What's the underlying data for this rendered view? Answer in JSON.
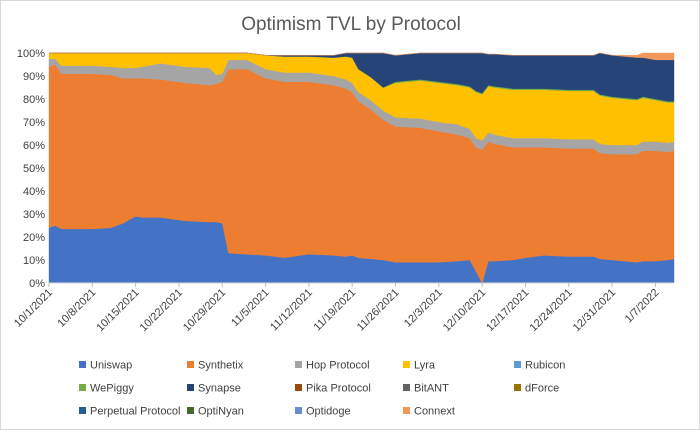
{
  "chart_data": {
    "type": "area",
    "stacked": "percent",
    "title": "Optimism TVL by Protocol",
    "xlabel": "",
    "ylabel": "",
    "ylim": [
      0,
      100
    ],
    "y_ticks": [
      "0%",
      "10%",
      "20%",
      "30%",
      "40%",
      "50%",
      "60%",
      "70%",
      "80%",
      "90%",
      "100%"
    ],
    "x_ticks": [
      {
        "day": 0,
        "label": "10/1/2021"
      },
      {
        "day": 7,
        "label": "10/8/2021"
      },
      {
        "day": 14,
        "label": "10/15/2021"
      },
      {
        "day": 21,
        "label": "10/22/2021"
      },
      {
        "day": 28,
        "label": "10/29/2021"
      },
      {
        "day": 35,
        "label": "11/5/2021"
      },
      {
        "day": 42,
        "label": "11/12/2021"
      },
      {
        "day": 49,
        "label": "11/19/2021"
      },
      {
        "day": 56,
        "label": "11/26/2021"
      },
      {
        "day": 63,
        "label": "12/3/2021"
      },
      {
        "day": 70,
        "label": "12/10/2021"
      },
      {
        "day": 77,
        "label": "12/17/2021"
      },
      {
        "day": 84,
        "label": "12/24/2021"
      },
      {
        "day": 91,
        "label": "12/31/2021"
      },
      {
        "day": 98,
        "label": "1/7/2022"
      }
    ],
    "x_day_range": [
      0,
      101
    ],
    "keyframes": [
      0,
      1,
      2,
      7,
      10,
      12,
      14,
      15,
      18,
      22,
      26,
      27,
      28,
      29,
      32,
      35,
      38,
      42,
      46,
      48,
      49,
      50,
      52,
      54,
      56,
      60,
      63,
      66,
      68,
      69,
      70,
      71,
      72,
      75,
      77,
      80,
      84,
      88,
      89,
      91,
      95,
      96,
      98,
      100,
      101
    ],
    "series": [
      {
        "name": "Uniswap",
        "color": "#4472C4",
        "values": [
          24,
          25,
          23.5,
          23.5,
          24,
          26,
          29,
          28.5,
          28.5,
          27,
          26.5,
          26.5,
          26,
          13,
          12.5,
          12,
          11,
          12.5,
          12,
          11.5,
          12,
          11,
          10.5,
          10,
          9,
          9,
          9,
          9.5,
          10,
          5,
          0,
          9.5,
          9.5,
          10,
          11,
          12,
          11.5,
          11.5,
          10.5,
          10,
          9,
          9.5,
          9.5,
          10,
          10.5
        ]
      },
      {
        "name": "Synthetix",
        "color": "#ED7D31",
        "values": [
          70,
          70,
          67.5,
          67.5,
          66.5,
          63,
          60,
          60.5,
          60,
          60,
          59.5,
          60,
          61.5,
          80,
          80.5,
          77,
          76.5,
          75,
          74,
          73,
          71,
          68,
          65,
          61,
          59,
          58.5,
          57,
          55,
          53,
          54,
          58,
          52,
          51,
          49,
          48,
          47,
          47,
          47,
          46,
          46,
          47,
          48,
          48,
          47,
          47
        ]
      },
      {
        "name": "Hop Protocol",
        "color": "#A5A5A5",
        "values": [
          3.5,
          2.5,
          3.5,
          3.5,
          3.5,
          4.5,
          4.5,
          5,
          7,
          7,
          7.5,
          4,
          3.5,
          4,
          4,
          4,
          4,
          4,
          4,
          4,
          4,
          4,
          4,
          4,
          4,
          4,
          4,
          4.5,
          4,
          4,
          4,
          4,
          4,
          4,
          4,
          4,
          4,
          4,
          4,
          4,
          4,
          4,
          4,
          4,
          4
        ]
      },
      {
        "name": "Lyra",
        "color": "#FFC000",
        "values": [
          2.5,
          2.5,
          5.5,
          5.5,
          6,
          6.5,
          6.5,
          6,
          4.5,
          6,
          6.5,
          9.5,
          9,
          3,
          3,
          6,
          7,
          7,
          8,
          10,
          11,
          10,
          10,
          10,
          15,
          16.5,
          17,
          17,
          18,
          20,
          20,
          20,
          20.5,
          21,
          21,
          21,
          21,
          21,
          21,
          20.5,
          19.5,
          19,
          18,
          17.5,
          17
        ]
      },
      {
        "name": "Rubicon",
        "color": "#5B9BD5",
        "values": [
          0,
          0,
          0,
          0,
          0,
          0,
          0,
          0,
          0,
          0,
          0,
          0,
          0,
          0,
          0,
          0,
          0,
          0,
          0,
          0,
          0,
          0,
          0,
          0,
          0,
          0,
          0,
          0,
          0,
          0,
          0,
          0,
          0,
          0,
          0,
          0,
          0,
          0,
          0,
          0,
          0,
          0,
          0,
          0,
          0
        ]
      },
      {
        "name": "WePiggy",
        "color": "#70AD47",
        "values": [
          0,
          0,
          0,
          0,
          0,
          0,
          0,
          0,
          0,
          0,
          0,
          0,
          0,
          0,
          0,
          0,
          0,
          0,
          0,
          0,
          0,
          0,
          0,
          0,
          0.5,
          0.5,
          0.5,
          0.5,
          0.5,
          0.5,
          0.5,
          0.5,
          0.5,
          0.5,
          0.5,
          0.5,
          0.5,
          0.5,
          0.5,
          0.5,
          0.5,
          0.5,
          0.5,
          0.5,
          0.5
        ]
      },
      {
        "name": "Synapse",
        "color": "#264478",
        "values": [
          0,
          0,
          0,
          0,
          0,
          0,
          0,
          0,
          0,
          0,
          0,
          0,
          0,
          0,
          0,
          0,
          0.5,
          0.5,
          1,
          1.5,
          2,
          7,
          10.5,
          15,
          11.5,
          11.5,
          12.5,
          13.5,
          14.5,
          16.5,
          17.5,
          13.5,
          14,
          14.5,
          14.5,
          14.5,
          15,
          15,
          18,
          18,
          18,
          17,
          17,
          18,
          18
        ]
      },
      {
        "name": "Pika Protocol",
        "color": "#9E480E",
        "values": [
          0,
          0,
          0,
          0,
          0,
          0,
          0,
          0,
          0,
          0,
          0,
          0,
          0,
          0,
          0,
          0,
          0,
          0,
          0,
          0,
          0,
          0,
          0,
          0,
          0,
          0,
          0,
          0,
          0,
          0,
          0,
          0,
          0,
          0,
          0,
          0,
          0,
          0,
          0,
          0,
          0,
          0,
          0,
          0,
          0
        ]
      },
      {
        "name": "BitANT",
        "color": "#636363",
        "values": [
          0,
          0,
          0,
          0,
          0,
          0,
          0,
          0,
          0,
          0,
          0,
          0,
          0,
          0,
          0,
          0,
          0,
          0,
          0,
          0,
          0,
          0,
          0,
          0,
          0,
          0,
          0,
          0,
          0,
          0,
          0,
          0,
          0,
          0,
          0,
          0,
          0,
          0,
          0,
          0,
          0,
          0,
          0,
          0,
          0
        ]
      },
      {
        "name": "dForce",
        "color": "#997300",
        "values": [
          0,
          0,
          0,
          0,
          0,
          0,
          0,
          0,
          0,
          0,
          0,
          0,
          0,
          0,
          0,
          0,
          0,
          0,
          0,
          0,
          0,
          0,
          0,
          0,
          0,
          0,
          0,
          0,
          0,
          0,
          0,
          0,
          0,
          0,
          0,
          0,
          0,
          0,
          0,
          0,
          0,
          0,
          0,
          0,
          0
        ]
      },
      {
        "name": "Perpetual Protocol",
        "color": "#255E91",
        "values": [
          0,
          0,
          0,
          0,
          0,
          0,
          0,
          0,
          0,
          0,
          0,
          0,
          0,
          0,
          0,
          0,
          0,
          0,
          0,
          0,
          0,
          0,
          0,
          0,
          0,
          0,
          0,
          0,
          0,
          0,
          0,
          0,
          0,
          0,
          0,
          0,
          0,
          0,
          0,
          0,
          0,
          0,
          0,
          0,
          0
        ]
      },
      {
        "name": "OptiNyan",
        "color": "#43682B",
        "values": [
          0,
          0,
          0,
          0,
          0,
          0,
          0,
          0,
          0,
          0,
          0,
          0,
          0,
          0,
          0,
          0,
          0,
          0,
          0,
          0,
          0,
          0,
          0,
          0,
          0,
          0,
          0,
          0,
          0,
          0,
          0,
          0,
          0,
          0,
          0,
          0,
          0,
          0,
          0,
          0,
          0,
          0,
          0,
          0,
          0
        ]
      },
      {
        "name": "Optidoge",
        "color": "#698ED0",
        "values": [
          0,
          0,
          0,
          0,
          0,
          0,
          0,
          0,
          0,
          0,
          0,
          0,
          0,
          0,
          0,
          0,
          0,
          0,
          0,
          0,
          0,
          0,
          0,
          0,
          0,
          0,
          0,
          0,
          0,
          0,
          0,
          0,
          0,
          0,
          0,
          0,
          0,
          0,
          0,
          0,
          0,
          0,
          0,
          0,
          0
        ]
      },
      {
        "name": "Connext",
        "color": "#F1975A",
        "values": [
          0,
          0,
          0,
          0,
          0,
          0,
          0,
          0,
          0,
          0,
          0,
          0,
          0,
          0,
          0,
          0,
          0,
          0,
          0,
          0,
          0,
          0,
          0,
          0,
          0,
          0,
          0,
          0,
          0,
          0,
          0,
          0,
          0,
          0,
          0,
          0,
          0,
          0,
          0,
          0,
          1,
          2,
          3,
          3,
          3
        ]
      }
    ],
    "legend_position": "bottom",
    "grid": false
  }
}
